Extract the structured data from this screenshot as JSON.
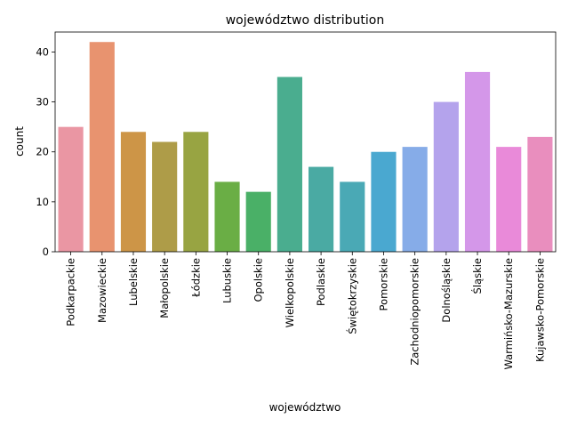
{
  "chart_data": {
    "type": "bar",
    "title": "województwo distribution",
    "xlabel": "województwo",
    "ylabel": "count",
    "ylim": [
      0,
      44
    ],
    "yticks": [
      0,
      10,
      20,
      30,
      40
    ],
    "grid": false,
    "legend": "none",
    "categories": [
      "Podkarpackie",
      "Mazowieckie",
      "Lubelskie",
      "Małopolskie",
      "Łódzkie",
      "Lubuskie",
      "Opolskie",
      "Wielkopolskie",
      "Podlaskie",
      "Świętokrzyskie",
      "Pomorskie",
      "Zachodniopomorskie",
      "Dolnośląskie",
      "Śląskie",
      "Warmińsko-Mazurskie",
      "Kujawsko-Pomorskie"
    ],
    "values": [
      25,
      42,
      24,
      22,
      24,
      14,
      12,
      35,
      17,
      14,
      20,
      21,
      30,
      36,
      21,
      23
    ],
    "colors": [
      "#ea96a3",
      "#e8936f",
      "#cd9547",
      "#ae9c48",
      "#98a442",
      "#6aae45",
      "#4ab067",
      "#4aad8f",
      "#4aaaa3",
      "#4aa9b5",
      "#4aa8d0",
      "#86ace8",
      "#b4a3ec",
      "#d497e9",
      "#e98ad9",
      "#e98ebe"
    ]
  }
}
